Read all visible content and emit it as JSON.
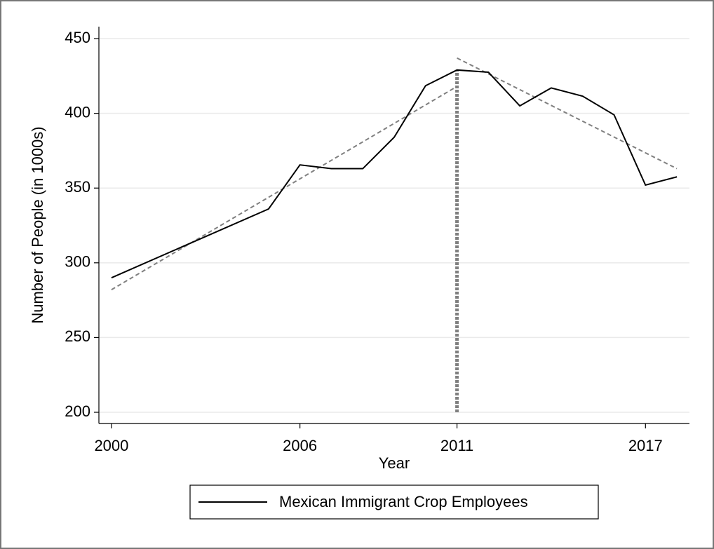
{
  "chart_data": {
    "type": "line",
    "xlabel": "Year",
    "ylabel": "Number of People (in 1000s)",
    "x": [
      2000,
      2005,
      2006,
      2007,
      2008,
      2009,
      2010,
      2011,
      2012,
      2013,
      2014,
      2015,
      2016,
      2017,
      2018
    ],
    "series": [
      {
        "name": "Mexican Immigrant Crop Employees",
        "color": "#000000",
        "values": [
          290,
          336,
          365.5,
          363,
          363,
          384,
          418.5,
          429,
          427.5,
          405,
          417,
          411.5,
          399,
          352,
          357.5
        ]
      }
    ],
    "fits": [
      {
        "x": [
          2000,
          2011
        ],
        "values": [
          282,
          418
        ],
        "color": "#808080"
      },
      {
        "x": [
          2011,
          2018
        ],
        "values": [
          437,
          363
        ],
        "color": "#808080"
      }
    ],
    "cutoff": {
      "x": 2011,
      "ymin": 200,
      "ymax": 429,
      "color": "#808080"
    },
    "xlim": [
      1999.6,
      2018.4
    ],
    "xticks": [
      2000,
      2006,
      2011,
      2017
    ],
    "ylim": [
      192.5,
      458
    ],
    "yticks": [
      200,
      250,
      300,
      350,
      400,
      450
    ],
    "grid": true
  }
}
